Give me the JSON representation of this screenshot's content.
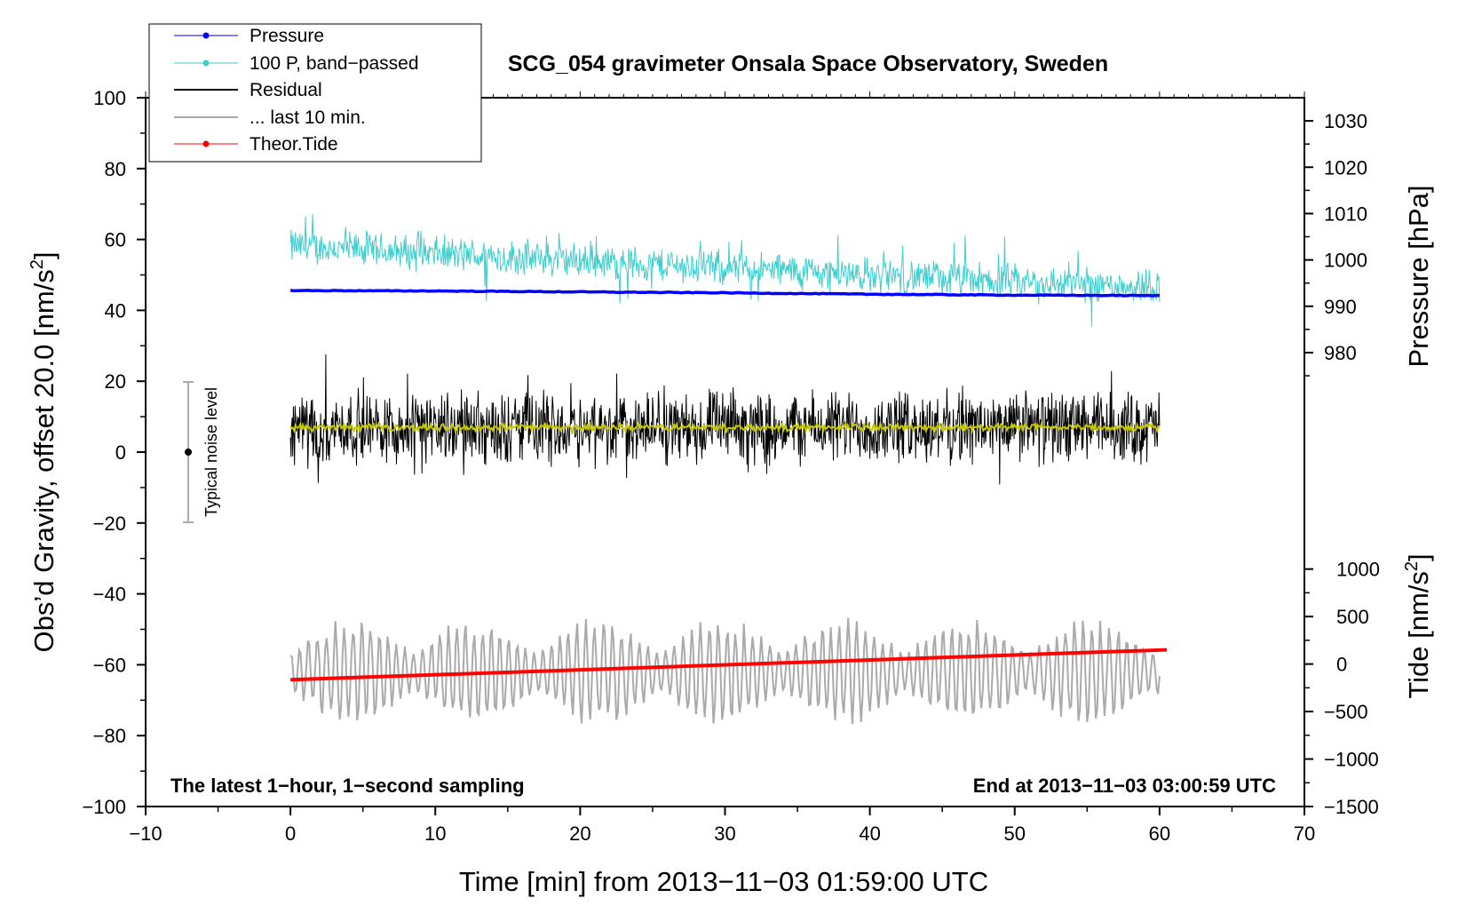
{
  "chart_data": {
    "type": "line",
    "title": "SCG_054 gravimeter Onsala Space Observatory, Sweden",
    "xlabel": "Time [min] from 2013−11−03 01:59:00 UTC",
    "ylabel_left": "Obs’d Gravity, offset 20.0 [nm/s²]",
    "ylabel_left_parts": {
      "main": "Obs’d Gravity, offset 20.0 [nm/s",
      "sup": "2",
      "close": "]"
    },
    "ylabel_right_pressure": "Pressure [hPa]",
    "ylabel_right_tide": "Tide [nm/s²]",
    "ylabel_right_tide_parts": {
      "main": "Tide [nm/s",
      "sup": "2",
      "close": "]"
    },
    "xlim": [
      -10,
      70
    ],
    "ylim": [
      -100,
      100
    ],
    "x_ticks": [
      "−10",
      "0",
      "10",
      "20",
      "30",
      "40",
      "50",
      "60",
      "70"
    ],
    "x_tick_values": [
      -10,
      0,
      10,
      20,
      30,
      40,
      50,
      60,
      70
    ],
    "y_ticks": [
      "100",
      "80",
      "60",
      "40",
      "20",
      "0",
      "−20",
      "−40",
      "−60",
      "−80",
      "−100"
    ],
    "y_tick_values": [
      100,
      80,
      60,
      40,
      20,
      0,
      -20,
      -40,
      -60,
      -80,
      -100
    ],
    "pressure_axis": {
      "ticks": [
        "1030",
        "1020",
        "1010",
        "1000",
        "990",
        "980"
      ],
      "tick_values": [
        1030,
        1020,
        1010,
        1000,
        990,
        980
      ],
      "range_hpa": [
        970,
        1035
      ],
      "range_gravity_units": [
        15,
        100
      ]
    },
    "tide_axis": {
      "ticks": [
        "1000",
        "500",
        "0",
        "−500",
        "−1000",
        "−1500"
      ],
      "tick_values": [
        1000,
        500,
        0,
        -500,
        -1000,
        -1500
      ],
      "range_nms2": [
        -1500,
        1000
      ],
      "range_gravity_units": [
        -100,
        -33
      ]
    },
    "legend": [
      {
        "label": "Pressure",
        "color": "#0000ff",
        "marker": true
      },
      {
        "label": "100 P, band−passed",
        "color": "#3ecece",
        "marker": true
      },
      {
        "label": "Residual",
        "color": "#000000",
        "marker": false
      },
      {
        "label": "... last 10 min.",
        "color": "#aaaaaa",
        "marker": false
      },
      {
        "label": "Theor.Tide",
        "color": "#ff0000",
        "marker": true
      }
    ],
    "legend_position": "top-left",
    "series": [
      {
        "name": "Pressure",
        "unit": "hPa",
        "x": [
          0,
          10,
          20,
          30,
          40,
          50,
          60
        ],
        "y": [
          993.4,
          993.3,
          993.1,
          992.9,
          992.6,
          992.4,
          992.3
        ],
        "color": "#0000ff"
      },
      {
        "name": "100 P, band−passed",
        "description_level": "around 55 nm/s² on left axis",
        "x": [
          0,
          10,
          20,
          30,
          40,
          50,
          60
        ],
        "y": [
          58,
          56,
          54,
          52,
          50,
          48,
          47
        ],
        "amplitude": 6,
        "color": "#3ecece"
      },
      {
        "name": "Residual",
        "x": [
          0,
          60
        ],
        "y": [
          7,
          7
        ],
        "amplitude": 12,
        "color": "#000000"
      },
      {
        "name": "Residual smoothed",
        "x": [
          0,
          60
        ],
        "y": [
          7,
          7
        ],
        "amplitude": 1.2,
        "color": "#c8c800"
      },
      {
        "name": "... last 10 min.",
        "x": [
          0,
          60
        ],
        "y": [
          -62,
          -62
        ],
        "amplitude": 10,
        "color": "#aaaaaa"
      },
      {
        "name": "Theor.Tide",
        "unit": "nm/s²",
        "x": [
          0,
          60.5
        ],
        "y": [
          -165,
          150
        ],
        "color": "#ff0000"
      }
    ],
    "noise_indicator": {
      "label": "Typical noise level",
      "x": -7,
      "y_center": 0,
      "y_range": [
        -20,
        20
      ]
    },
    "annotations": {
      "bottom_left": "The latest 1−hour, 1−second sampling",
      "bottom_right": "End at 2013−11−03 03:00:59 UTC"
    }
  }
}
